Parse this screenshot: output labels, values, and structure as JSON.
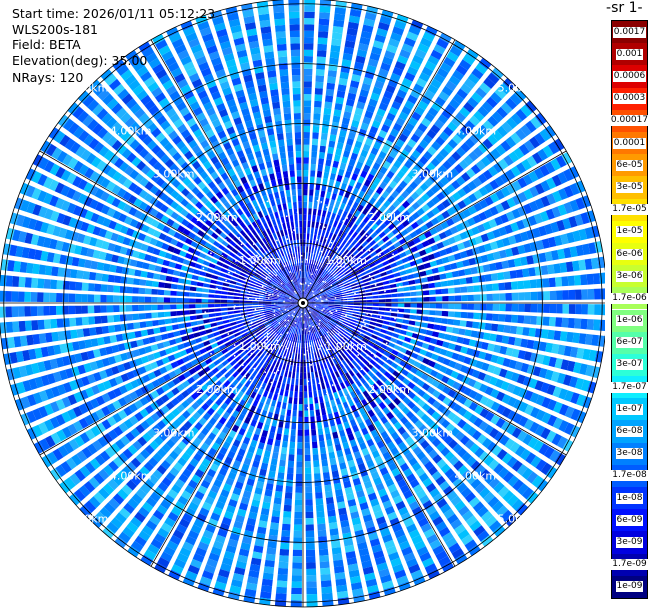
{
  "header": {
    "start_time": "Start time: 2026/01/11 05:12:23",
    "instrument": "WLS200s-181",
    "field": "Field: BETA",
    "elevation": "Elevation(deg): 35.00",
    "nrays": "NRays: 120"
  },
  "colorbar": {
    "title": "-1 sr-",
    "labels": [
      "0.0017",
      "0.001",
      "0.0006",
      "0.0003",
      "0.00017",
      "0.0001",
      "6e-05",
      "3e-05",
      "1.7e-05",
      "1e-05",
      "6e-06",
      "3e-06",
      "1.7e-06",
      "1e-06",
      "6e-07",
      "3e-07",
      "1.7e-07",
      "1e-07",
      "6e-08",
      "3e-08",
      "1.7e-08",
      "1e-08",
      "6e-09",
      "3e-09",
      "1.7e-09",
      "1e-09"
    ],
    "colors": [
      "#8b0000",
      "#b00000",
      "#dd0000",
      "#ff2000",
      "#ff5000",
      "#ff7800",
      "#ff9a00",
      "#ffbf00",
      "#ffe000",
      "#ffff00",
      "#e8ff10",
      "#c8ff30",
      "#a8ff58",
      "#80ff80",
      "#55ffaa",
      "#2cffd8",
      "#10eeff",
      "#00c8ff",
      "#00a4ff",
      "#0080ff",
      "#005cff",
      "#0034ff",
      "#0010ff",
      "#0000e0",
      "#0000b0",
      "#000080"
    ]
  },
  "chart_data": {
    "type": "heatmap",
    "projection": "polar",
    "field": "BETA",
    "elevation_deg": 35.0,
    "n_rays": 120,
    "range_rings_km": [
      1.0,
      2.0,
      3.0,
      4.0,
      5.0
    ],
    "range_ring_labels": [
      "1.00km",
      "2.00km",
      "3.00km",
      "4.00km",
      "5.00km"
    ],
    "max_range_km": 5.08,
    "value_scale": "log",
    "value_range": [
      1e-09,
      0.0017
    ],
    "dominant_value_range": [
      1e-08,
      1e-07
    ],
    "near_range_value_range": [
      1e-09,
      1e-08
    ]
  }
}
